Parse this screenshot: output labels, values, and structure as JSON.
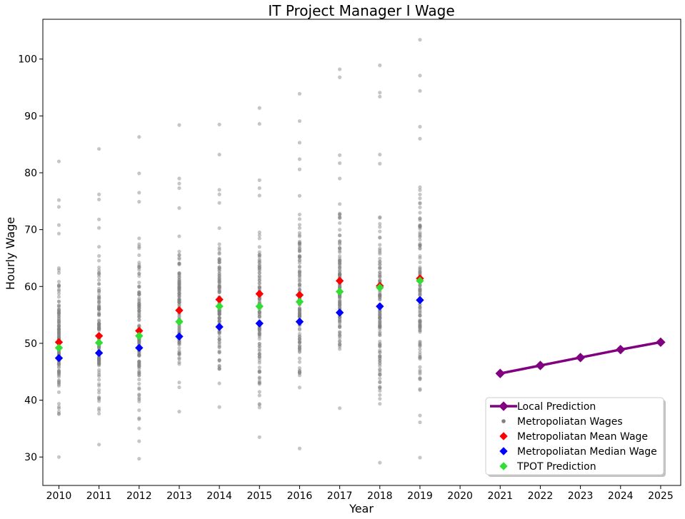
{
  "chart_data": {
    "type": "scatter",
    "title": "IT Project Manager I Wage",
    "xlabel": "Year",
    "ylabel": "Hourly Wage",
    "xlim": [
      2009.6,
      2025.5
    ],
    "ylim": [
      25.0,
      107.0
    ],
    "x_ticks": [
      2010,
      2011,
      2012,
      2013,
      2014,
      2015,
      2016,
      2017,
      2018,
      2019,
      2020,
      2021,
      2022,
      2023,
      2024,
      2025
    ],
    "y_ticks": [
      30,
      40,
      50,
      60,
      70,
      80,
      90,
      100
    ],
    "grid": false,
    "legend_position": "lower-right",
    "colors": {
      "local_prediction": "#800080",
      "metro_wages": "#808080",
      "mean": "#ff0000",
      "median": "#0000ff",
      "tpot": "#33dd33"
    },
    "metro_wage_ranges": [
      {
        "x": 2010,
        "min": 30.0,
        "max": 82.0,
        "outliers": [
          75.2,
          74.0,
          70.8,
          69.3
        ]
      },
      {
        "x": 2011,
        "min": 32.2,
        "max": 84.2,
        "outliers": [
          76.2,
          75.3,
          71.8,
          70.3
        ]
      },
      {
        "x": 2012,
        "min": 29.7,
        "max": 86.3,
        "outliers": [
          79.9,
          76.5,
          74.9
        ]
      },
      {
        "x": 2013,
        "min": 38.0,
        "max": 88.4,
        "outliers": [
          79.0,
          78.1,
          77.3,
          73.8
        ]
      },
      {
        "x": 2014,
        "min": 38.8,
        "max": 88.5,
        "outliers": [
          83.2,
          77.0,
          76.2,
          74.7
        ]
      },
      {
        "x": 2015,
        "min": 33.5,
        "max": 91.4,
        "outliers": [
          88.6,
          78.7,
          77.3,
          76.0
        ]
      },
      {
        "x": 2016,
        "min": 31.5,
        "max": 93.9,
        "outliers": [
          89.1,
          85.3,
          82.4,
          80.6
        ]
      },
      {
        "x": 2017,
        "min": 38.6,
        "max": 98.2,
        "outliers": [
          96.8,
          83.1,
          81.7,
          79.0
        ]
      },
      {
        "x": 2018,
        "min": 29.0,
        "max": 98.9,
        "outliers": [
          94.1,
          93.4,
          83.2,
          81.6
        ]
      },
      {
        "x": 2019,
        "min": 29.9,
        "max": 103.4,
        "outliers": [
          97.1,
          94.4,
          88.1,
          86.0
        ]
      }
    ],
    "series": [
      {
        "name": "Local Prediction",
        "kind": "line-marker",
        "x": [
          2021,
          2022,
          2023,
          2024,
          2025
        ],
        "values": [
          44.7,
          46.1,
          47.5,
          48.9,
          50.2
        ]
      },
      {
        "name": "Metropoliatan Mean Wage",
        "kind": "marker",
        "x": [
          2010,
          2011,
          2012,
          2013,
          2014,
          2015,
          2016,
          2017,
          2018,
          2019
        ],
        "values": [
          50.2,
          51.3,
          52.2,
          55.8,
          57.7,
          58.7,
          58.5,
          61.0,
          60.1,
          61.4
        ]
      },
      {
        "name": "Metropoliatan Median Wage",
        "kind": "marker",
        "x": [
          2010,
          2011,
          2012,
          2013,
          2014,
          2015,
          2016,
          2017,
          2018,
          2019
        ],
        "values": [
          47.4,
          48.3,
          49.2,
          51.2,
          52.9,
          53.5,
          53.8,
          55.4,
          56.5,
          57.6
        ]
      },
      {
        "name": "TPOT Prediction",
        "kind": "marker",
        "x": [
          2010,
          2011,
          2012,
          2013,
          2014,
          2015,
          2016,
          2017,
          2018,
          2019
        ],
        "values": [
          49.2,
          50.1,
          51.3,
          53.8,
          56.5,
          56.5,
          57.3,
          59.1,
          59.8,
          61.0
        ]
      }
    ],
    "legend": [
      {
        "label": "Local Prediction",
        "marker": "line-diamond",
        "color": "#800080"
      },
      {
        "label": "Metropoliatan Wages",
        "marker": "dot",
        "color": "#808080"
      },
      {
        "label": "Metropoliatan Mean Wage",
        "marker": "diamond",
        "color": "#ff0000"
      },
      {
        "label": "Metropoliatan Median Wage",
        "marker": "diamond",
        "color": "#0000ff"
      },
      {
        "label": "TPOT Prediction",
        "marker": "diamond",
        "color": "#33dd33"
      }
    ]
  }
}
